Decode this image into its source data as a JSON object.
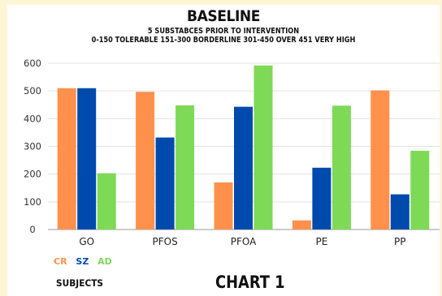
{
  "chart_data": {
    "type": "bar",
    "title": "BASELINE",
    "subtitle_lines": [
      "5 SUBSTABCES PRIOR TO INTERVENTION",
      "0-150 TOLERABLE 151-300 BORDERLINE 301-450 OVER 451 VERY HIGH"
    ],
    "categories": [
      "GO",
      "PFOS",
      "PFOA",
      "PE",
      "PP"
    ],
    "series": [
      {
        "name": "CR",
        "color": "#ff914d",
        "values": [
          510,
          497,
          170,
          33,
          502
        ]
      },
      {
        "name": "SZ",
        "color": "#004aad",
        "values": [
          510,
          332,
          443,
          223,
          127
        ]
      },
      {
        "name": "AD",
        "color": "#7ed957",
        "values": [
          203,
          448,
          592,
          447,
          284
        ]
      }
    ],
    "ylim": [
      0,
      600
    ],
    "yticks": [
      0,
      100,
      200,
      300,
      400,
      500,
      600
    ],
    "grid": true,
    "legend_placement": "bottom-left",
    "xlabel": "SUBJECTS",
    "chart_label": "CHART 1"
  }
}
